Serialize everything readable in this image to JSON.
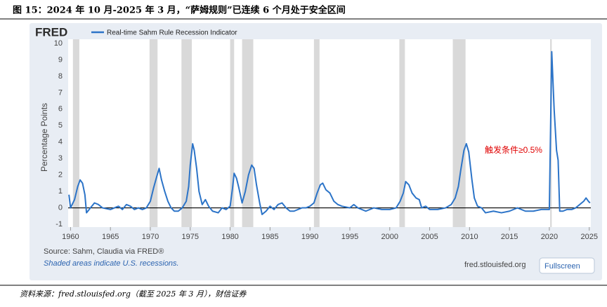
{
  "chart_data": {
    "type": "line",
    "title": "图 15：2024 年 10 月-2025 年 3 月，“萨姆规则”已连续 6 个月处于安全区间",
    "brand": "FRED",
    "ylabel": "Percentage Points",
    "annotation": "触发条件≥0.5%",
    "source": "Source: Sahm, Claudia via FRED®",
    "shading_note": "Shaded areas indicate U.S. recessions.",
    "site": "fred.stlouisfed.org",
    "button": "Fullscreen",
    "footnote": "资料来源：fred.stlouisfed.org（截至 2025 年 3 月），财信证券",
    "series": [
      {
        "name": "Real-time Sahm Rule Recession Indicator",
        "color": "#2c74c8"
      }
    ],
    "x": [
      1959.8,
      1960.0,
      1960.5,
      1960.9,
      1961.2,
      1961.5,
      1961.8,
      1962.0,
      1962.5,
      1963.0,
      1963.5,
      1964,
      1965,
      1966,
      1966.5,
      1967,
      1967.5,
      1968,
      1968.5,
      1969,
      1969.5,
      1970,
      1970.4,
      1970.8,
      1971.1,
      1971.4,
      1971.8,
      1972.2,
      1972.6,
      1973,
      1973.5,
      1974,
      1974.5,
      1974.8,
      1975.0,
      1975.3,
      1975.5,
      1975.8,
      1976.1,
      1976.5,
      1976.9,
      1977.3,
      1977.8,
      1978.5,
      1979,
      1979.5,
      1980.0,
      1980.3,
      1980.5,
      1980.8,
      1981.1,
      1981.5,
      1981.9,
      1982.3,
      1982.7,
      1983.0,
      1983.3,
      1983.7,
      1984,
      1984.5,
      1985,
      1985.5,
      1986,
      1986.5,
      1987,
      1987.5,
      1988,
      1989,
      1989.5,
      1990,
      1990.5,
      1990.9,
      1991.3,
      1991.6,
      1992,
      1992.5,
      1993,
      1993.5,
      1994,
      1995,
      1995.5,
      1996,
      1997,
      1998,
      1999,
      2000,
      2000.8,
      2001.3,
      2001.7,
      2002.0,
      2002.4,
      2002.8,
      2003.3,
      2003.7,
      2004,
      2004.5,
      2005,
      2006,
      2007,
      2007.7,
      2008.2,
      2008.6,
      2008.9,
      2009.3,
      2009.6,
      2009.9,
      2010.3,
      2010.6,
      2011,
      2011.5,
      2012,
      2013,
      2014,
      2015,
      2016,
      2017,
      2018,
      2019,
      2020.0,
      2020.3,
      2020.6,
      2020.9,
      2021.1,
      2021.3,
      2021.7,
      2022.2,
      2022.8,
      2023.3,
      2023.8,
      2024.3,
      2024.6,
      2024.9,
      2025.1
    ],
    "values": [
      0.8,
      0.0,
      0.5,
      1.3,
      1.7,
      1.5,
      0.8,
      -0.3,
      0.0,
      0.3,
      0.2,
      0.0,
      -0.1,
      0.1,
      -0.1,
      0.2,
      0.1,
      -0.1,
      0.0,
      -0.1,
      0.0,
      0.4,
      1.2,
      1.9,
      2.4,
      1.7,
      1.0,
      0.4,
      0.0,
      -0.2,
      -0.2,
      0.0,
      0.4,
      1.3,
      2.6,
      3.9,
      3.5,
      2.4,
      1.0,
      0.2,
      0.5,
      0.1,
      -0.2,
      -0.3,
      0.0,
      -0.1,
      0.1,
      1.2,
      2.1,
      1.8,
      1.2,
      0.3,
      1.0,
      2.0,
      2.6,
      2.4,
      1.4,
      0.3,
      -0.4,
      -0.2,
      0.1,
      -0.1,
      0.2,
      0.3,
      0.0,
      -0.2,
      -0.2,
      0.0,
      0.0,
      0.1,
      0.3,
      0.9,
      1.4,
      1.5,
      1.1,
      0.9,
      0.4,
      0.2,
      0.1,
      0.0,
      0.2,
      0.0,
      -0.2,
      0.0,
      -0.1,
      -0.1,
      0.0,
      0.4,
      0.9,
      1.6,
      1.4,
      0.9,
      0.6,
      0.5,
      0.0,
      0.1,
      -0.1,
      -0.1,
      0.0,
      0.2,
      0.6,
      1.3,
      2.3,
      3.5,
      3.9,
      3.4,
      1.7,
      0.6,
      0.1,
      0.0,
      -0.3,
      -0.2,
      -0.3,
      -0.2,
      0.0,
      -0.2,
      -0.2,
      -0.1,
      -0.1,
      9.5,
      6.0,
      3.5,
      2.9,
      -0.2,
      -0.2,
      -0.1,
      -0.1,
      0.0,
      0.2,
      0.4,
      0.6,
      0.4,
      0.3
    ],
    "recessions": [
      [
        1960.3,
        1961.1
      ],
      [
        1969.9,
        1970.9
      ],
      [
        1973.9,
        1975.2
      ],
      [
        1980.0,
        1980.5
      ],
      [
        1981.5,
        1982.9
      ],
      [
        1990.5,
        1991.2
      ],
      [
        2001.2,
        2001.9
      ],
      [
        2007.9,
        2009.5
      ],
      [
        2020.1,
        2020.3
      ]
    ],
    "recession_color": "#d9d9d9",
    "xlim": [
      1959.7,
      2025.2
    ],
    "xticks": [
      1960,
      1965,
      1970,
      1975,
      1980,
      1985,
      1990,
      1995,
      2000,
      2005,
      2010,
      2015,
      2020,
      2025
    ],
    "ylim": [
      -1,
      10
    ],
    "yticks": [
      -1,
      0,
      1,
      2,
      3,
      4,
      5,
      6,
      7,
      8,
      9,
      10
    ]
  }
}
